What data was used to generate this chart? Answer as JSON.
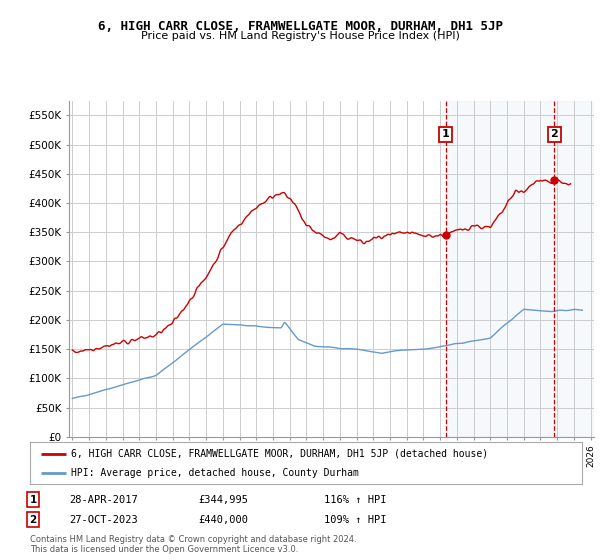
{
  "title": "6, HIGH CARR CLOSE, FRAMWELLGATE MOOR, DURHAM, DH1 5JP",
  "subtitle": "Price paid vs. HM Land Registry's House Price Index (HPI)",
  "ylabel_ticks": [
    0,
    50000,
    100000,
    150000,
    200000,
    250000,
    300000,
    350000,
    400000,
    450000,
    500000,
    550000
  ],
  "ylabel_labels": [
    "£0",
    "£50K",
    "£100K",
    "£150K",
    "£200K",
    "£250K",
    "£300K",
    "£350K",
    "£400K",
    "£450K",
    "£500K",
    "£550K"
  ],
  "xlim": [
    1994.8,
    2026.2
  ],
  "ylim": [
    0,
    575000
  ],
  "hpi_color": "#6699cc",
  "property_color": "#cc0000",
  "marker1_date": 2017.33,
  "marker1_value": 344995,
  "marker1_label": "1",
  "marker2_date": 2023.83,
  "marker2_value": 440000,
  "marker2_label": "2",
  "legend_property": "6, HIGH CARR CLOSE, FRAMWELLGATE MOOR, DURHAM, DH1 5JP (detached house)",
  "legend_hpi": "HPI: Average price, detached house, County Durham",
  "annot1_date": "28-APR-2017",
  "annot1_price": "£344,995",
  "annot1_hpi": "116% ↑ HPI",
  "annot2_date": "27-OCT-2023",
  "annot2_price": "£440,000",
  "annot2_hpi": "109% ↑ HPI",
  "footnote": "Contains HM Land Registry data © Crown copyright and database right 2024.\nThis data is licensed under the Open Government Licence v3.0.",
  "bg_color": "#ffffff",
  "grid_color": "#cccccc",
  "shade_color": "#dce8f5"
}
